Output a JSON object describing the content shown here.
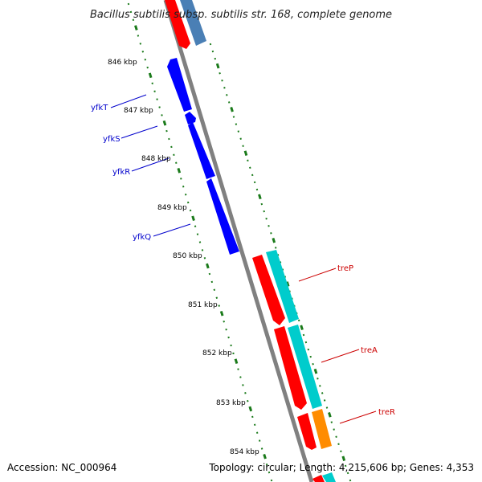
{
  "title": "Bacillus subtilis subsp. subtilis str. 168, complete genome",
  "footer": {
    "accession": "Accession: NC_000964",
    "summary": "Topology: circular; Length: 4,215,606 bp; Genes: 4,353"
  },
  "colors": {
    "backbone": "#808080",
    "tick": "#1a7a1a",
    "reverse_cds": "#0000ff",
    "forward_cds": "#ff0000",
    "forward_feature": "#00cccc",
    "regulator": "#ff8c00",
    "steel": "#4a7fb5",
    "reverse_label": "#0000cc",
    "forward_label": "#cc0000"
  },
  "ticks": [
    "846 kbp",
    "847 kbp",
    "848 kbp",
    "849 kbp",
    "850 kbp",
    "851 kbp",
    "852 kbp",
    "853 kbp",
    "854 kbp"
  ],
  "reverse_genes": [
    "yfkT",
    "yfkS",
    "yfkR",
    "yfkQ"
  ],
  "forward_genes": [
    "treP",
    "treA",
    "treR"
  ]
}
